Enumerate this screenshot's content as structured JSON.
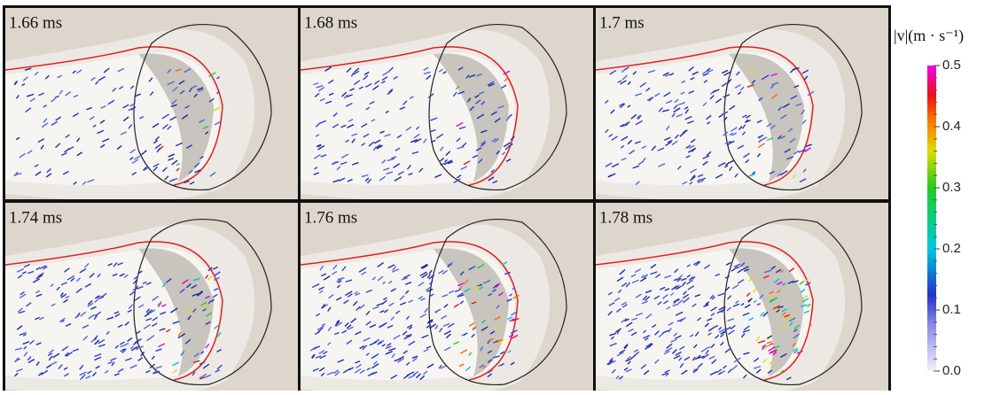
{
  "panels": [
    {
      "label": "1.66 ms"
    },
    {
      "label": "1.68 ms"
    },
    {
      "label": "1.7 ms"
    },
    {
      "label": "1.74 ms"
    },
    {
      "label": "1.76 ms"
    },
    {
      "label": "1.78 ms"
    }
  ],
  "colorbar": {
    "title": "|v|(m · s⁻¹)",
    "range": [
      0,
      0.5
    ],
    "ticks": [
      {
        "value": 0,
        "label": "0.0"
      },
      0.1,
      0.2,
      0.3,
      0.4,
      0.5
    ]
  }
}
